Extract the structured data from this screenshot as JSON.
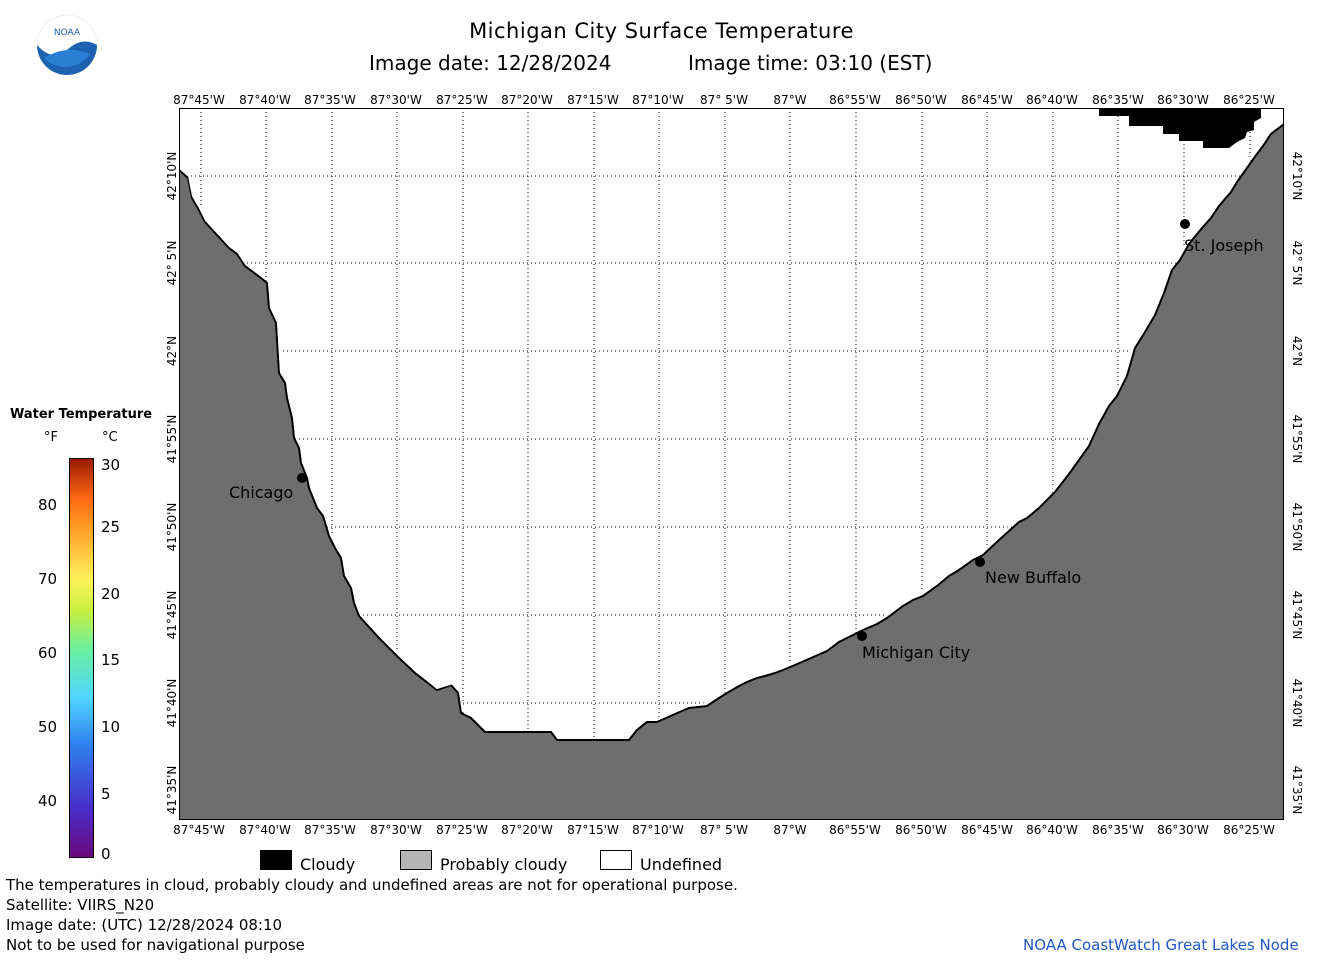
{
  "header": {
    "title": "Michigan City Surface Temperature",
    "image_date": "Image date: 12/28/2024",
    "image_time": "Image time: 03:10 (EST)"
  },
  "logo": {
    "text": "NOAA",
    "icon": "noaa-logo"
  },
  "map": {
    "lon_labels": [
      "87°45'W",
      "87°40'W",
      "87°35'W",
      "87°30'W",
      "87°25'W",
      "87°20'W",
      "87°15'W",
      "87°10'W",
      "87° 5'W",
      "87°W",
      "86°55'W",
      "86°50'W",
      "86°45'W",
      "86°40'W",
      "86°35'W",
      "86°30'W",
      "86°25'W"
    ],
    "lat_labels": [
      "42°10'N",
      "42° 5'N",
      "42°N",
      "41°55'N",
      "41°50'N",
      "41°45'N",
      "41°40'N",
      "41°35'N"
    ],
    "cities": [
      {
        "name": "Chicago"
      },
      {
        "name": "Michigan City"
      },
      {
        "name": "New Buffalo"
      },
      {
        "name": "St. Joseph"
      }
    ],
    "colors": {
      "land": "#6e6e6e",
      "cloud": "#000000",
      "undefined": "#ffffff"
    }
  },
  "scale": {
    "title": "Water Temperature",
    "unit_f": "°F",
    "unit_c": "°C",
    "f_ticks": [
      "80",
      "70",
      "60",
      "50",
      "40"
    ],
    "c_ticks": [
      "30",
      "25",
      "20",
      "15",
      "10",
      "5",
      "0"
    ]
  },
  "legend": {
    "cloudy": "Cloudy",
    "probably_cloudy": "Probably cloudy",
    "undefined": "Undefined"
  },
  "footer": {
    "disclaimer": "The temperatures in cloud, probably cloudy and undefined areas are not for operational purpose.",
    "satellite": "Satellite: VIIRS_N20",
    "image_date_utc": "Image date: (UTC) 12/28/2024  08:10",
    "nav_warning": "Not to be used for navigational purpose",
    "credit": "NOAA CoastWatch Great Lakes Node"
  }
}
